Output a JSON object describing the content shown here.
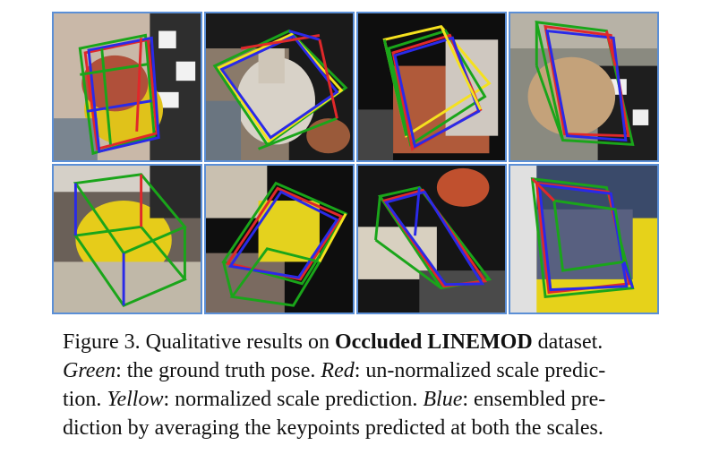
{
  "caption": {
    "figure_label": "Figure 3.",
    "intro": " Qualitative results on ",
    "dataset_name": "Occluded LINEMOD",
    "intro_end": " dataset.",
    "green_term": "Green",
    "green_text": ": the ground truth pose. ",
    "red_term": "Red",
    "red_text_1": ": un-normalized scale predic-",
    "red_text_2": "tion. ",
    "yellow_term": "Yellow",
    "yellow_text": ": normalized scale prediction. ",
    "blue_term": "Blue",
    "blue_text_1": ": ensembled pre-",
    "blue_text_2": "diction by averaging the keypoints predicted at both the scales."
  },
  "colors": {
    "green": "#1aa51a",
    "red": "#e0282a",
    "yellow": "#f5e11e",
    "blue": "#2a2ae8",
    "tile_border": "#5b8fd6"
  }
}
